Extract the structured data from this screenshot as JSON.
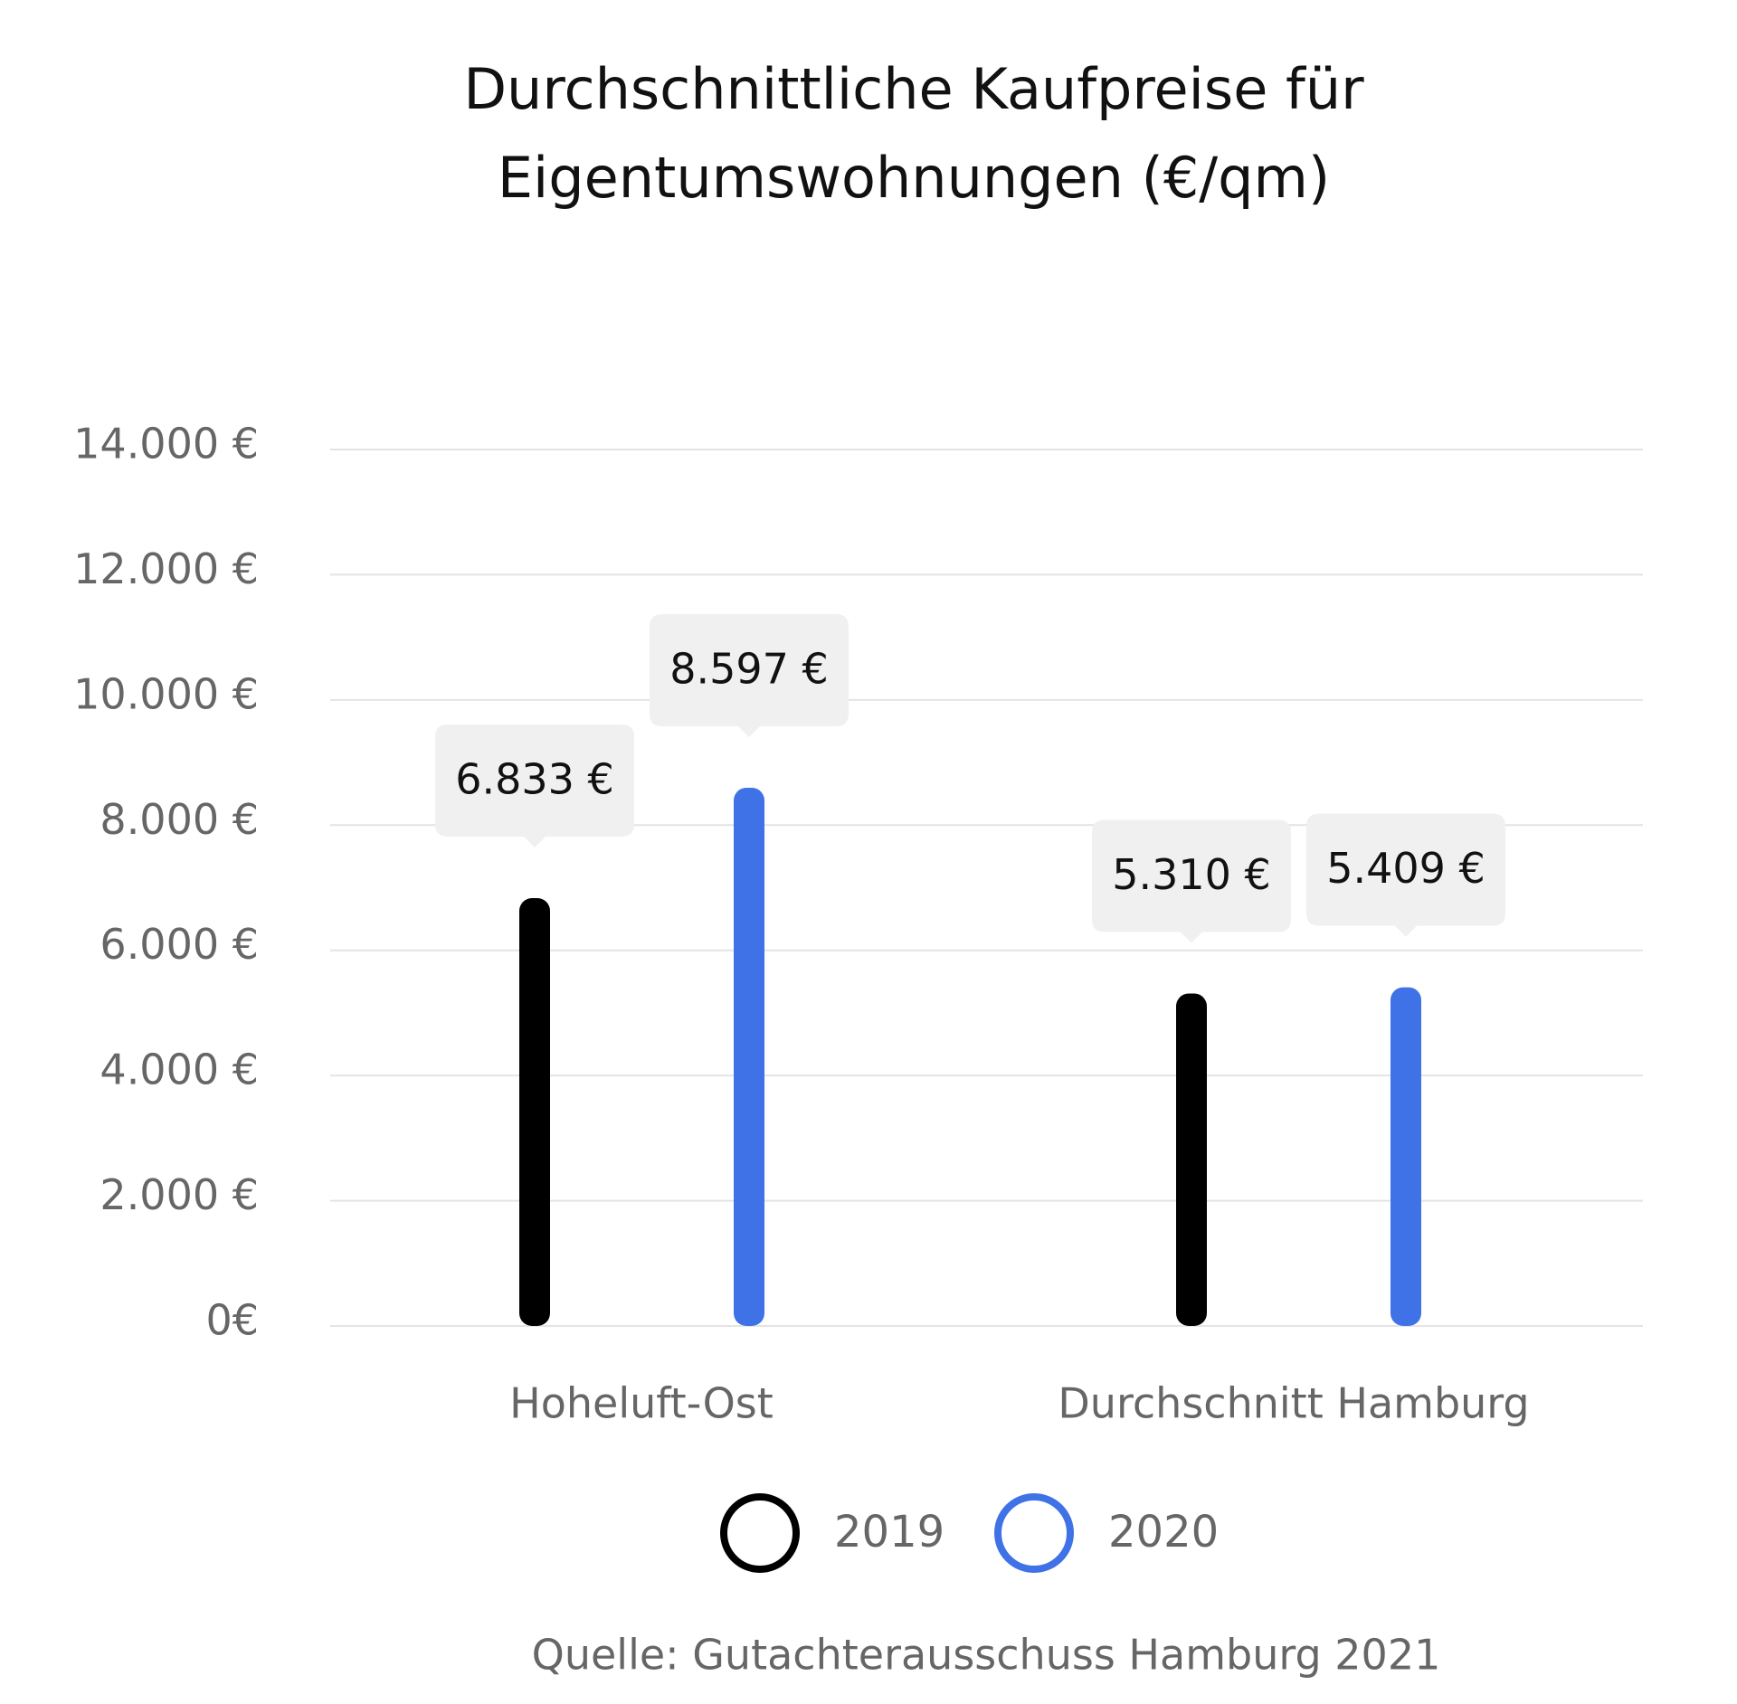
{
  "chart_data": {
    "type": "bar",
    "title": "Durchschnittliche Kaufpreise für Eigentumswohnungen (€/qm)",
    "categories": [
      "Hoheluft-Ost",
      "Durchschnitt Hamburg"
    ],
    "series": [
      {
        "name": "2019",
        "color": "#000000",
        "values": [
          6833,
          5310
        ],
        "value_labels": [
          "6.833 €",
          "5.310 €"
        ]
      },
      {
        "name": "2020",
        "color": "#3f72e6",
        "values": [
          8597,
          5409
        ],
        "value_labels": [
          "8.597 €",
          "5.409 €"
        ]
      }
    ],
    "ylim": [
      0,
      14000
    ],
    "yticks": [
      {
        "value": 0,
        "label": "0€"
      },
      {
        "value": 2000,
        "label": "2.000 €"
      },
      {
        "value": 4000,
        "label": "4.000 €"
      },
      {
        "value": 6000,
        "label": "6.000 €"
      },
      {
        "value": 8000,
        "label": "8.000 €"
      },
      {
        "value": 10000,
        "label": "10.000 €"
      },
      {
        "value": 12000,
        "label": "12.000 €"
      },
      {
        "value": 14000,
        "label": "14.000 €"
      }
    ],
    "grid": true,
    "source": "Quelle: Gutachterausschuss Hamburg 2021"
  }
}
